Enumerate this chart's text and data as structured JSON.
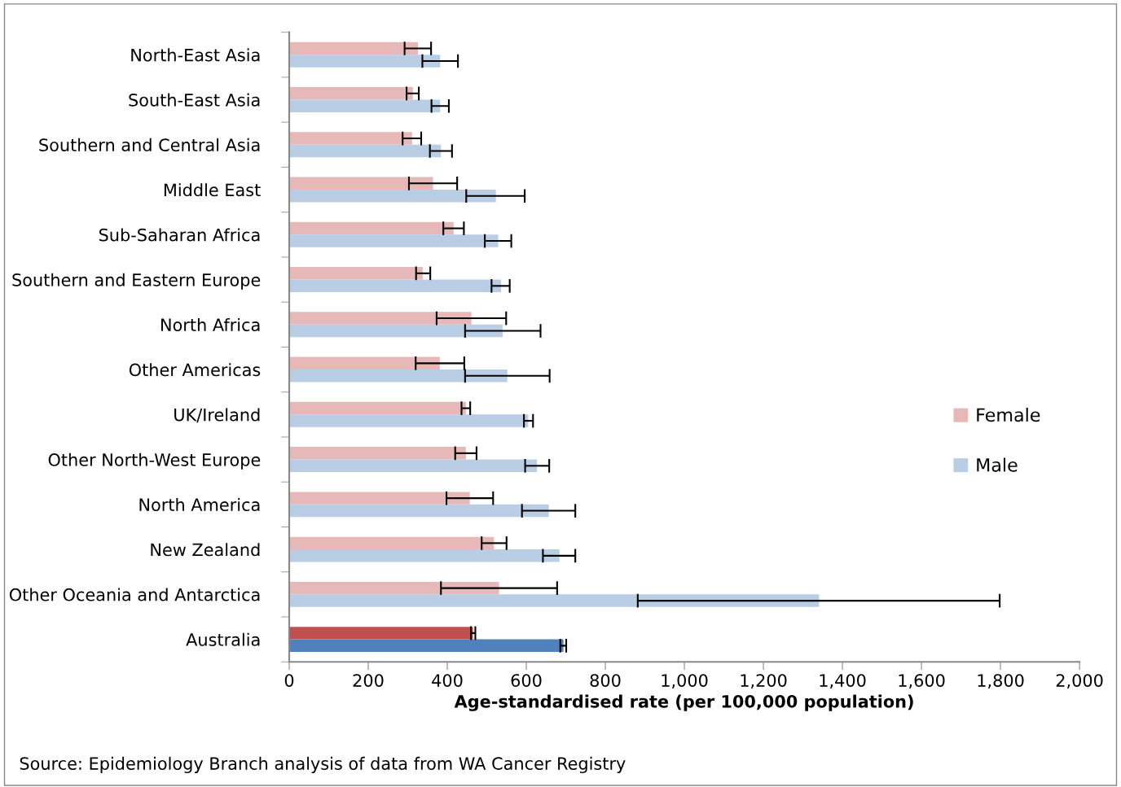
{
  "chart_data": {
    "type": "bar",
    "orientation": "horizontal",
    "xlabel": "Age-standardised rate (per 100,000 population)",
    "categories": [
      "North-East Asia",
      "South-East Asia",
      "Southern and Central Asia",
      "Middle East",
      "Sub-Saharan Africa",
      "Southern and Eastern Europe",
      "North Africa",
      "Other Americas",
      "UK/Ireland",
      "Other North-West Europe",
      "North America",
      "New Zealand",
      "Other Oceania and Antarctica",
      "Australia"
    ],
    "series": [
      {
        "name": "Female",
        "color": "#e6b9b8",
        "colors": [
          "#e6b9b8",
          "#e6b9b8",
          "#e6b9b8",
          "#e6b9b8",
          "#e6b9b8",
          "#e6b9b8",
          "#e6b9b8",
          "#e6b9b8",
          "#e6b9b8",
          "#e6b9b8",
          "#e6b9b8",
          "#e6b9b8",
          "#e6b9b8",
          "#c0504d"
        ],
        "values": [
          326,
          313,
          311,
          364,
          416,
          338,
          461,
          381,
          447,
          447,
          457,
          518,
          531,
          465
        ],
        "errors": [
          [
            292,
            359
          ],
          [
            297,
            328
          ],
          [
            287,
            334
          ],
          [
            303,
            425
          ],
          [
            390,
            442
          ],
          [
            321,
            357
          ],
          [
            373,
            549
          ],
          [
            320,
            443
          ],
          [
            436,
            458
          ],
          [
            420,
            474
          ],
          [
            398,
            516
          ],
          [
            487,
            550
          ],
          [
            384,
            678
          ],
          [
            460,
            471
          ]
        ]
      },
      {
        "name": "Male",
        "color": "#b9cde5",
        "colors": [
          "#b9cde5",
          "#b9cde5",
          "#b9cde5",
          "#b9cde5",
          "#b9cde5",
          "#b9cde5",
          "#b9cde5",
          "#b9cde5",
          "#b9cde5",
          "#b9cde5",
          "#b9cde5",
          "#b9cde5",
          "#b9cde5",
          "#4f81bd"
        ],
        "values": [
          382,
          382,
          384,
          523,
          529,
          536,
          540,
          552,
          605,
          627,
          657,
          684,
          1341,
          694
        ],
        "errors": [
          [
            337,
            427
          ],
          [
            360,
            404
          ],
          [
            356,
            412
          ],
          [
            448,
            596
          ],
          [
            495,
            562
          ],
          [
            512,
            558
          ],
          [
            445,
            636
          ],
          [
            445,
            659
          ],
          [
            594,
            617
          ],
          [
            597,
            658
          ],
          [
            589,
            724
          ],
          [
            642,
            724
          ],
          [
            882,
            1798
          ],
          [
            686,
            701
          ]
        ]
      }
    ],
    "xlim": [
      0,
      2000
    ],
    "xticks": [
      0,
      200,
      400,
      600,
      800,
      {
        "value": 1000,
        "label": "1,000"
      },
      {
        "value": 1200,
        "label": "1,200"
      },
      {
        "value": 1400,
        "label": "1,400"
      },
      {
        "value": 1600,
        "label": "1,600"
      },
      {
        "value": 1800,
        "label": "1,800"
      },
      {
        "value": 2000,
        "label": "2,000"
      }
    ],
    "grid": false,
    "legend": "right",
    "annotations": [
      "Source: Epidemiology Branch analysis of data from WA Cancer Registry"
    ]
  }
}
